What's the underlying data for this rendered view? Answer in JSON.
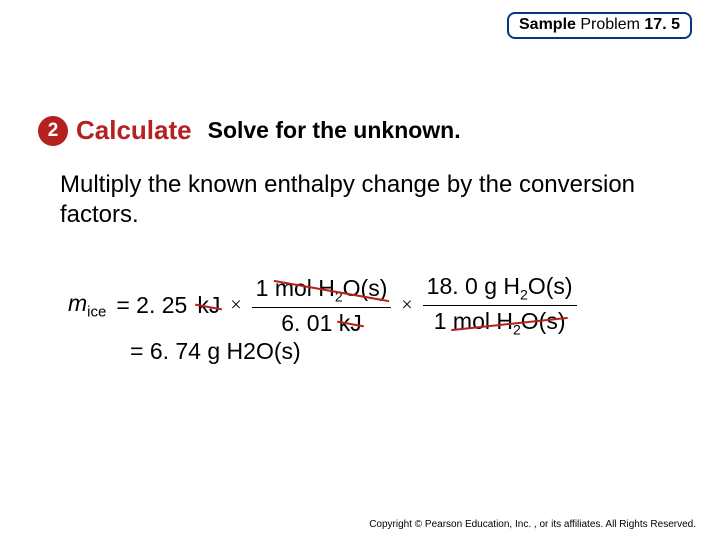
{
  "header": {
    "sample": "Sample",
    "problem": "Problem",
    "num": "17. 5"
  },
  "step": {
    "num": "2",
    "title": "Calculate",
    "sub": "Solve for the unknown."
  },
  "body": "Multiply the known enthalpy change by the conversion factors.",
  "eq": {
    "lhs_var": "m",
    "lhs_sub": "ice",
    "eq1_val": "= 2. 25",
    "eq1_unit": "kJ",
    "f1_num_a": "1",
    "f1_num_b": "mol H",
    "f1_num_c": "O(s)",
    "f1_den_a": "6. 01",
    "f1_den_b": "kJ",
    "f2_num_a": "18. 0 g H",
    "f2_num_b": "O(s)",
    "f2_den_a": "1",
    "f2_den_b": "mol H",
    "f2_den_c": "O(s)",
    "two": "2",
    "times": "×",
    "result_a": "= 6. 74 g H",
    "result_b": "O(s)"
  },
  "copyright": "Copyright © Pearson Education, Inc. , or its affiliates. All Rights Reserved.",
  "colors": {
    "accent_red": "#b5211f",
    "header_border": "#003a7a",
    "text": "#000000",
    "bg": "#ffffff"
  }
}
